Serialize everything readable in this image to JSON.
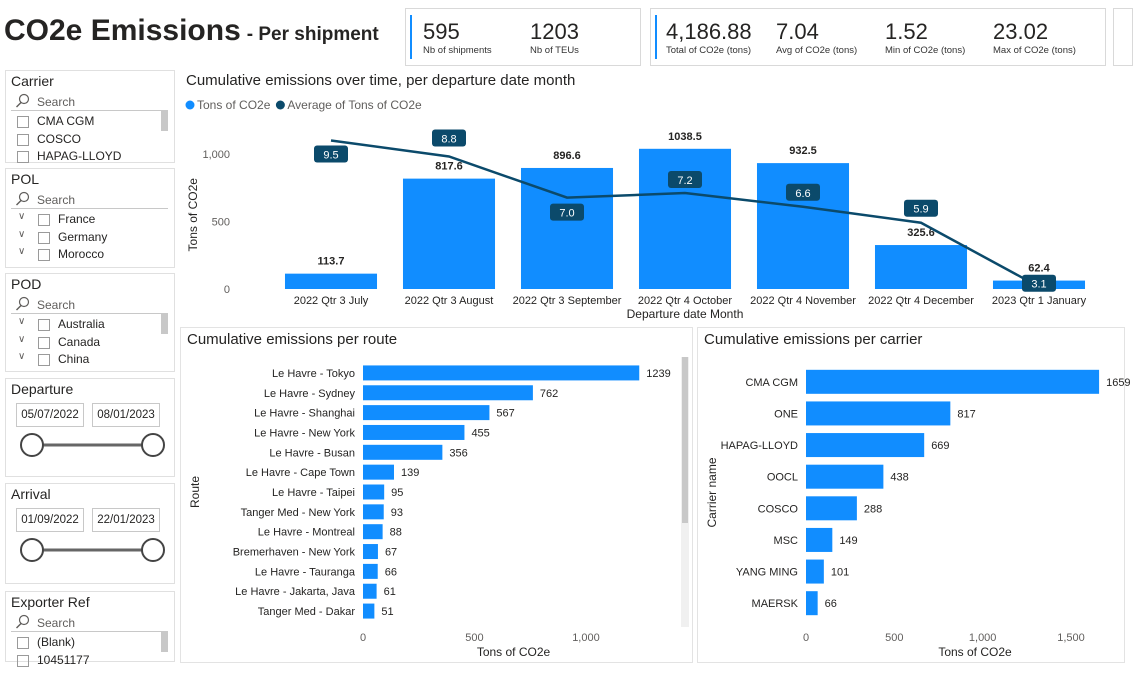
{
  "header": {
    "title": "CO2e Emissions",
    "subtitle": "- Per shipment"
  },
  "kpi_cards": [
    {
      "items": [
        {
          "value": "595",
          "label": "Nb of shipments"
        },
        {
          "value": "1203",
          "label": "Nb of TEUs"
        }
      ]
    },
    {
      "items": [
        {
          "value": "4,186.88",
          "label": "Total of CO2e (tons)"
        },
        {
          "value": "7.04",
          "label": "Avg of CO2e (tons)"
        },
        {
          "value": "1.52",
          "label": "Min of CO2e (tons)"
        },
        {
          "value": "23.02",
          "label": "Max of CO2e (tons)"
        }
      ]
    }
  ],
  "slicers": [
    {
      "title": "Carrier",
      "search": "Search",
      "items": [
        "CMA CGM",
        "COSCO",
        "HAPAG-LLOYD"
      ]
    },
    {
      "title": "POL",
      "search": "Search",
      "expandable": true,
      "items": [
        "France",
        "Germany",
        "Morocco"
      ]
    },
    {
      "title": "POD",
      "search": "Search",
      "expandable": true,
      "items": [
        "Australia",
        "Canada",
        "China"
      ]
    },
    {
      "title": "Departure",
      "from": "05/07/2022",
      "to": "08/01/2023"
    },
    {
      "title": "Arrival",
      "from": "01/09/2022",
      "to": "22/01/2023"
    },
    {
      "title": "Exporter Ref",
      "search": "Search",
      "items": [
        "(Blank)",
        "10451177"
      ]
    }
  ],
  "chart_data": [
    {
      "type": "bar",
      "title": "Cumulative emissions over time, per departure date month",
      "x_label": "Departure date Month",
      "y_label": "Tons of CO2e",
      "legend": "top-left",
      "categories": [
        "2022 Qtr 3 July",
        "2022 Qtr 3 August",
        "2022 Qtr 3 September",
        "2022 Qtr 4 October",
        "2022 Qtr 4 November",
        "2022 Qtr 4 December",
        "2023 Qtr 1 January"
      ],
      "series": [
        {
          "name": "Tons of CO2e",
          "type": "bar",
          "color": "#118dff",
          "values": [
            113.7,
            817.6,
            896.6,
            1038.5,
            932.5,
            325.6,
            62.4
          ]
        },
        {
          "name": "Average of Tons of CO2e",
          "type": "line",
          "axis": "y2",
          "color": "#0b4a6b",
          "values": [
            9.5,
            8.8,
            7.0,
            7.2,
            6.6,
            5.9,
            3.1
          ],
          "value_labels": [
            "9.5",
            "8.8",
            "7.0",
            "7.2",
            "6.6",
            "5.9",
            "3.1"
          ]
        }
      ],
      "ylim": [
        0,
        1100
      ],
      "yticks": [
        0,
        500,
        {
          "value": 1000,
          "label": "1,000"
        }
      ],
      "y2lim": [
        3,
        9.5
      ],
      "grid": false
    },
    {
      "type": "hbar",
      "title": "Cumulative emissions per route",
      "x_label": "Tons of CO2e",
      "y_label": "Route",
      "color": "#118dff",
      "categories": [
        "Le Havre - Tokyo",
        "Le Havre - Sydney",
        "Le Havre - Shanghai",
        "Le Havre - New York",
        "Le Havre - Busan",
        "Le Havre - Cape Town",
        "Le Havre - Taipei",
        "Tanger Med - New York",
        "Le Havre - Montreal",
        "Bremerhaven - New York",
        "Le Havre - Tauranga",
        "Le Havre - Jakarta, Java",
        "Tanger Med - Dakar"
      ],
      "values": [
        1239,
        762,
        567,
        455,
        356,
        139,
        95,
        93,
        88,
        67,
        66,
        61,
        51
      ],
      "xlim": [
        0,
        1350
      ],
      "xticks": [
        0,
        500,
        {
          "value": 1000,
          "label": "1,000"
        }
      ],
      "grid": false
    },
    {
      "type": "hbar",
      "title": "Cumulative emissions per carrier",
      "x_label": "Tons of CO2e",
      "y_label": "Carrier name",
      "color": "#118dff",
      "categories": [
        "CMA CGM",
        "ONE",
        "HAPAG-LLOYD",
        "OOCL",
        "COSCO",
        "MSC",
        "YANG MING",
        "MAERSK"
      ],
      "values": [
        1659,
        817,
        669,
        438,
        288,
        149,
        101,
        66
      ],
      "xlim": [
        0,
        1800
      ],
      "xticks": [
        0,
        500,
        {
          "value": 1000,
          "label": "1,000"
        },
        {
          "value": 1500,
          "label": "1,500"
        }
      ],
      "grid": false
    }
  ]
}
